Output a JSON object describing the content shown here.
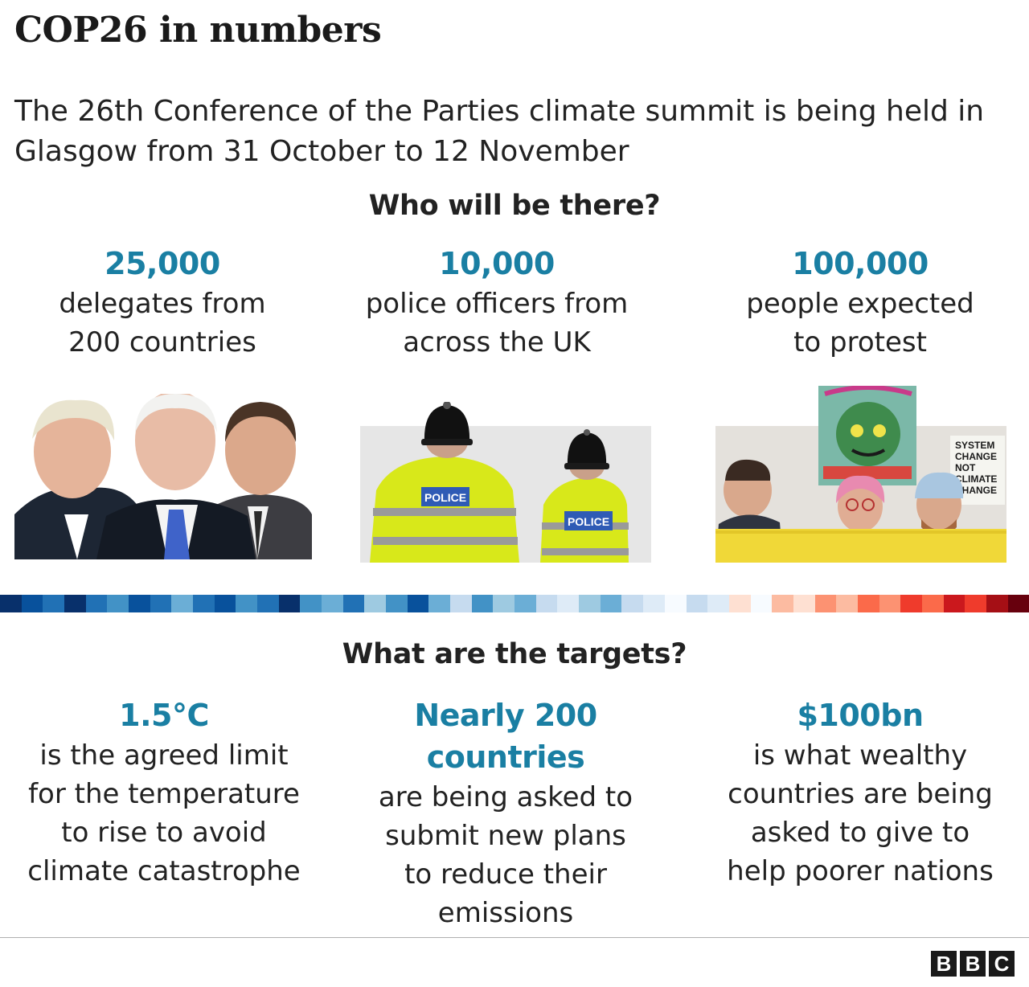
{
  "title": "COP26 in numbers",
  "subtitle": "The 26th Conference of the Parties climate summit is being held in Glasgow from 31 October to 12 November",
  "accent_color": "#1a7fa3",
  "who": {
    "heading": "Who will be there?",
    "stats": [
      {
        "value": "25,000",
        "text_line1": "delegates from",
        "text_line2": "200 countries",
        "image": "world-leaders-photo"
      },
      {
        "value": "10,000",
        "text_line1": "police officers from",
        "text_line2": "across the UK",
        "image": "police-officers-photo"
      },
      {
        "value": "100,000",
        "text_line1": "people expected",
        "text_line2": "to protest",
        "image": "protesters-photo"
      }
    ],
    "protest_sign": [
      "SYSTEM",
      "CHANGE",
      "NOT",
      "CLIMATE",
      "CHANGE"
    ],
    "police_label": "POLICE"
  },
  "climate_stripe_colors": [
    "#08306b",
    "#08519c",
    "#2171b5",
    "#08306b",
    "#2171b5",
    "#4292c6",
    "#08519c",
    "#2171b5",
    "#6baed6",
    "#2171b5",
    "#08519c",
    "#4292c6",
    "#2171b5",
    "#08306b",
    "#4292c6",
    "#6baed6",
    "#2171b5",
    "#9ecae1",
    "#4292c6",
    "#08519c",
    "#6baed6",
    "#c6dbef",
    "#4292c6",
    "#9ecae1",
    "#6baed6",
    "#c6dbef",
    "#deebf7",
    "#9ecae1",
    "#6baed6",
    "#c6dbef",
    "#deebf7",
    "#f7fbff",
    "#c6dbef",
    "#deebf7",
    "#fee0d2",
    "#f7fbff",
    "#fcbba1",
    "#fee0d2",
    "#fc9272",
    "#fcbba1",
    "#fb6a4a",
    "#fc9272",
    "#ef3b2c",
    "#fb6a4a",
    "#cb181d",
    "#ef3b2c",
    "#a50f15",
    "#67000d"
  ],
  "targets": {
    "heading": "What are the targets?",
    "items": [
      {
        "value": "1.5°C",
        "lines": [
          "is the agreed limit",
          "for the temperature",
          "to rise to avoid",
          "climate catastrophe"
        ]
      },
      {
        "value": "Nearly 200 countries",
        "lines": [
          "are being asked to",
          "submit new plans",
          "to reduce their",
          "emissions"
        ]
      },
      {
        "value": "$100bn",
        "lines": [
          "is what wealthy",
          "countries are being",
          "asked to give to",
          "help poorer nations"
        ]
      }
    ]
  },
  "footer": {
    "logo": [
      "B",
      "B",
      "C"
    ]
  }
}
